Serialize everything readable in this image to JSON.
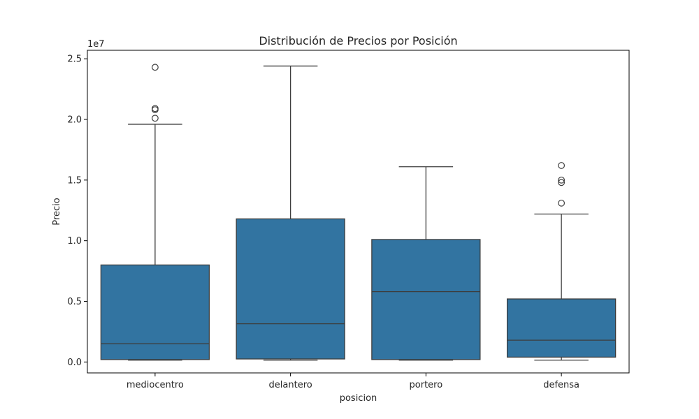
{
  "chart_data": {
    "type": "boxplot",
    "title": "Distribución de Precios por Posición",
    "xlabel": "posicion",
    "ylabel": "Precio",
    "y_multiplier_label": "1e7",
    "y_tick_labels": [
      "0.0",
      "0.5",
      "1.0",
      "1.5",
      "2.0",
      "2.5"
    ],
    "y_tick_values": [
      0.0,
      0.5,
      1.0,
      1.5,
      2.0,
      2.5
    ],
    "ylim": [
      -0.09,
      2.57
    ],
    "unit_scale": 10000000,
    "categories": [
      "mediocentro",
      "delantero",
      "portero",
      "defensa"
    ],
    "boxes": [
      {
        "category": "mediocentro",
        "whisker_low": 0.015,
        "q1": 0.02,
        "median": 0.15,
        "q3": 0.8,
        "whisker_high": 1.96,
        "outliers": [
          2.43,
          2.09,
          2.08,
          2.01
        ]
      },
      {
        "category": "delantero",
        "whisker_low": 0.015,
        "q1": 0.025,
        "median": 0.315,
        "q3": 1.18,
        "whisker_high": 2.44,
        "outliers": []
      },
      {
        "category": "portero",
        "whisker_low": 0.015,
        "q1": 0.02,
        "median": 0.58,
        "q3": 1.01,
        "whisker_high": 1.61,
        "outliers": []
      },
      {
        "category": "defensa",
        "whisker_low": 0.015,
        "q1": 0.04,
        "median": 0.18,
        "q3": 0.52,
        "whisker_high": 1.22,
        "outliers": [
          1.62,
          1.5,
          1.48,
          1.31
        ]
      }
    ],
    "colors": {
      "box_fill": "#3274a1",
      "line": "#3d3d3d",
      "axis": "#000000"
    },
    "grid": false,
    "legend": "none"
  }
}
